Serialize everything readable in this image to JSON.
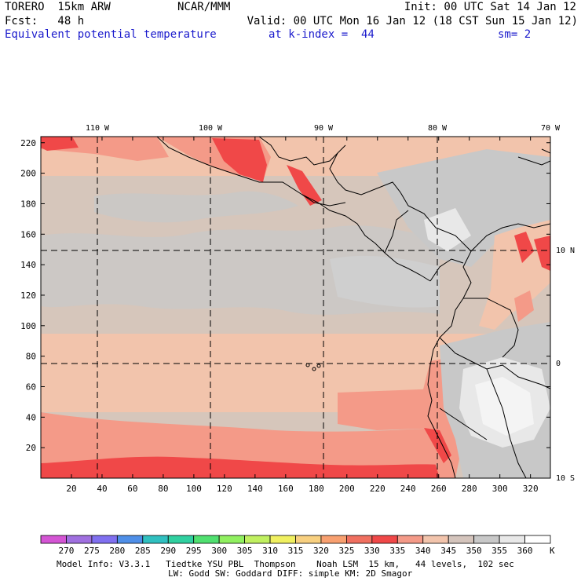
{
  "header": {
    "model": "TORERO  15km ARW",
    "center": "NCAR/MMM",
    "init": "Init: 00 UTC Sat 14 Jan 12",
    "fcst": "Fcst:   48 h",
    "valid": "Valid: 00 UTC Mon 16 Jan 12 (18 CST Sun 15 Jan 12)",
    "field": "Equivalent potential temperature",
    "level": "at k-index =  44",
    "smoothing": "sm= 2"
  },
  "map": {
    "lon_labels": [
      "110 W",
      "100 W",
      "90 W",
      "80 W",
      "70 W"
    ],
    "lat_labels": [
      "10 N",
      "0",
      "10 S"
    ],
    "y_ticks": [
      "220",
      "200",
      "180",
      "160",
      "140",
      "120",
      "100",
      "80",
      "60",
      "40",
      "20"
    ],
    "x_ticks": [
      "20",
      "40",
      "60",
      "80",
      "100",
      "120",
      "140",
      "160",
      "180",
      "200",
      "220",
      "240",
      "260",
      "280",
      "300",
      "320"
    ],
    "grid_x_max": 333,
    "grid_y_max": 224
  },
  "colorbar": {
    "labels": [
      "270",
      "275",
      "280",
      "285",
      "290",
      "295",
      "300",
      "305",
      "310",
      "315",
      "320",
      "325",
      "330",
      "335",
      "340",
      "345",
      "350",
      "355",
      "360"
    ],
    "unit": "K",
    "colors": [
      "#d455d4",
      "#a070e0",
      "#8070f0",
      "#4f8fe8",
      "#30c0c0",
      "#30d0a0",
      "#50e070",
      "#90f060",
      "#c0f060",
      "#f0f060",
      "#f8d080",
      "#f8a070",
      "#f07060",
      "#f04848",
      "#f49a88",
      "#f2c4ac",
      "#d4c4bc",
      "#c8c8c8",
      "#e8e8e8",
      "#ffffff"
    ]
  },
  "footer": {
    "line1": "Model Info: V3.3.1   Tiedtke YSU PBL  Thompson    Noah LSM  15 km,   44 levels,  102 sec",
    "line2": "LW: Godd SW: Goddard DIFF: simple KM: 2D Smagor"
  }
}
